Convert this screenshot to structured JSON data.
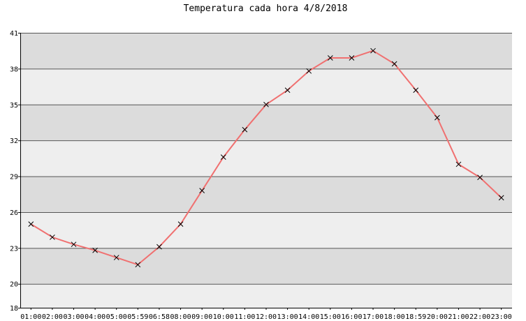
{
  "chart_data": {
    "type": "line",
    "title": "Temperatura cada hora 4/8/2018",
    "xlabel": "",
    "ylabel": "",
    "categories": [
      "01:00",
      "02:00",
      "03:00",
      "04:00",
      "05:00",
      "05:59",
      "06:58",
      "08:00",
      "09:00",
      "10:00",
      "11:00",
      "12:00",
      "13:00",
      "14:00",
      "15:00",
      "16:00",
      "17:00",
      "18:00",
      "18:59",
      "20:00",
      "21:00",
      "22:00",
      "23:00"
    ],
    "values": [
      25.0,
      23.9,
      23.3,
      22.8,
      22.2,
      21.6,
      23.1,
      25.0,
      27.8,
      30.6,
      32.9,
      35.0,
      36.2,
      37.8,
      38.9,
      38.9,
      39.5,
      38.4,
      36.2,
      33.9,
      30.0,
      28.9,
      27.2
    ],
    "yticks": [
      18,
      20,
      23,
      26,
      29,
      32,
      35,
      38,
      41
    ],
    "ylim": [
      18,
      41
    ],
    "grid": true,
    "colors": {
      "line": "#f07070",
      "marker": "#000000",
      "band_dark": "#dcdcdc",
      "band_light": "#eeeeee",
      "gridline": "#555555"
    }
  }
}
